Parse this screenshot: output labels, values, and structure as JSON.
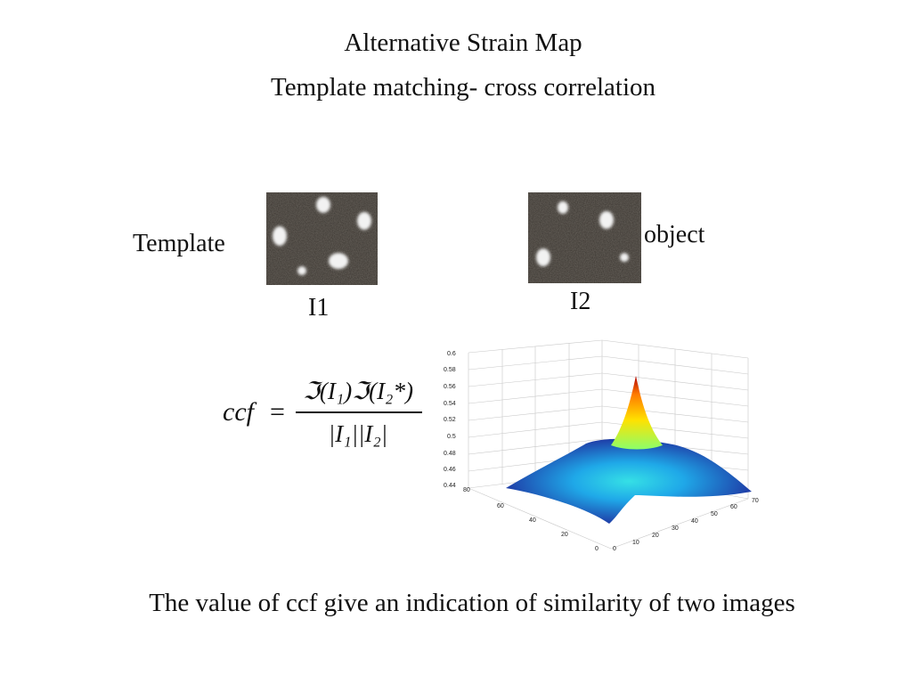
{
  "slide": {
    "title": "Alternative Strain Map",
    "subtitle": "Template matching- cross correlation",
    "template_label": "Template",
    "object_label": "object",
    "image1_label": "I1",
    "image2_label": "I2",
    "formula": {
      "lhs": "ccf",
      "equals": "=",
      "numerator": "ℑ(I₁)ℑ(I₂*)",
      "denominator": "|I₁||I₂|"
    },
    "footer": "The value of ccf give an indication of similarity of two images"
  },
  "chart_data": {
    "type": "surface",
    "z_ticks": [
      "0.6",
      "0.58",
      "0.56",
      "0.54",
      "0.52",
      "0.5",
      "0.48",
      "0.46",
      "0.44"
    ],
    "y_ticks_left": [
      "80",
      "60",
      "40",
      "20",
      "0"
    ],
    "x_ticks_right": [
      "0",
      "10",
      "20",
      "30",
      "40",
      "50",
      "60",
      "70"
    ],
    "zlim": [
      0.44,
      0.6
    ],
    "peak_z": 0.57,
    "base_z": 0.46,
    "colormap": "jet"
  }
}
